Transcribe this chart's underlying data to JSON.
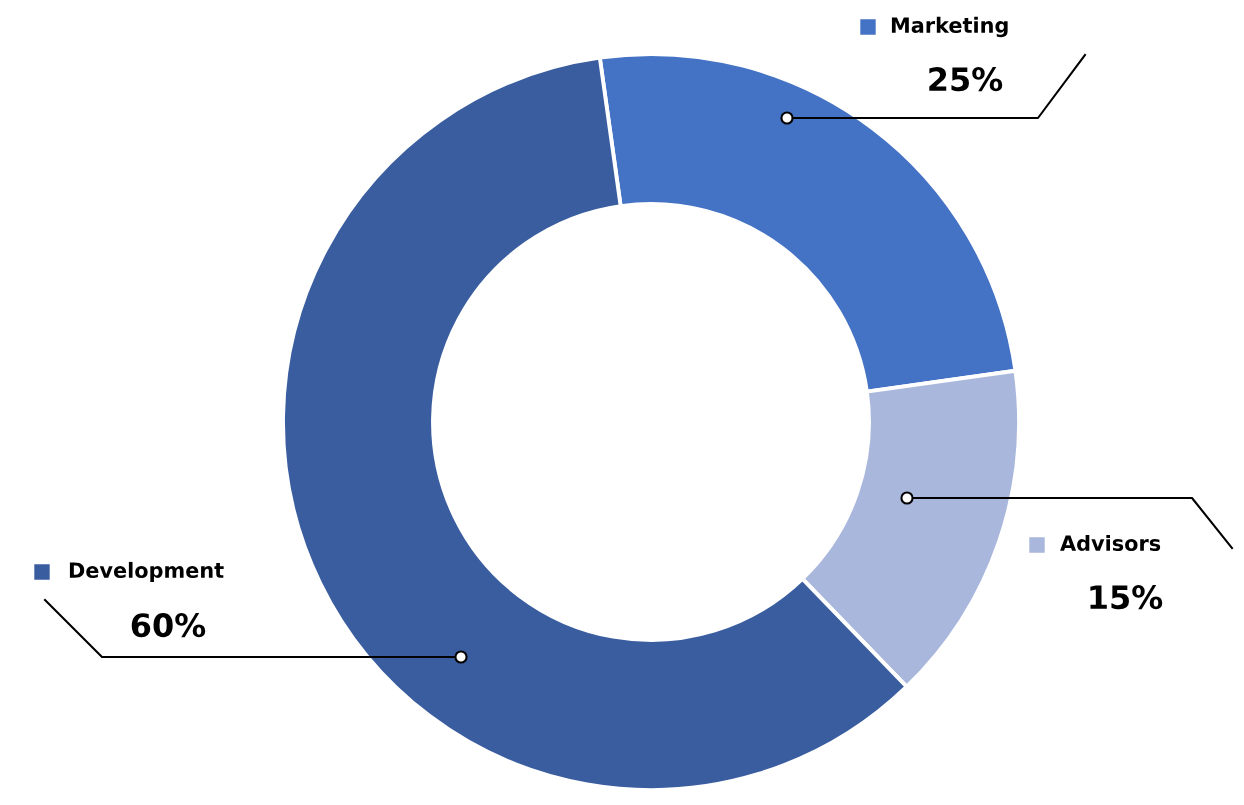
{
  "chart_data": {
    "type": "donut",
    "categories": [
      "Marketing",
      "Advisors",
      "Development"
    ],
    "values": [
      25,
      15,
      60
    ],
    "colors": [
      "#4472c4",
      "#a9b7dc",
      "#3a5da0"
    ],
    "value_labels": [
      "25%",
      "15%",
      "60%"
    ],
    "legend": "top left"
  }
}
